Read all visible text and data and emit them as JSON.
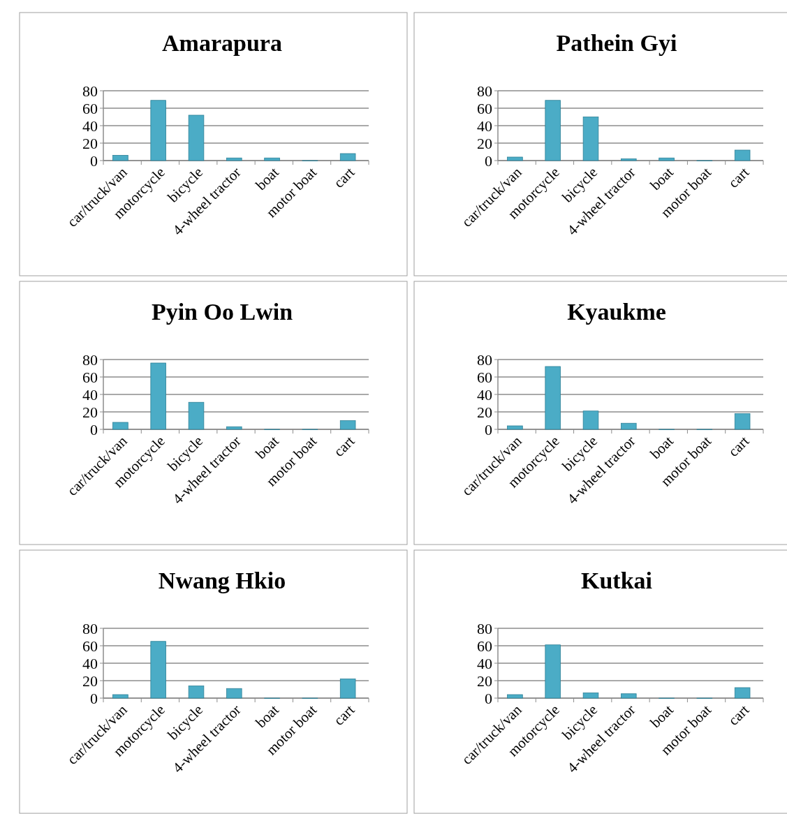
{
  "chart_data": [
    {
      "type": "bar",
      "title": "Amarapura",
      "categories": [
        "car/truck/van",
        "motorcycle",
        "bicycle",
        "4-wheel tractor",
        "boat",
        "motor boat",
        "cart"
      ],
      "values": [
        6,
        69,
        52,
        3,
        3,
        0,
        8
      ],
      "color": "#4bacc6",
      "ylim": [
        0,
        80
      ],
      "yticks": [
        0,
        20,
        40,
        60,
        80
      ],
      "grid": "y"
    },
    {
      "type": "bar",
      "title": "Pathein Gyi",
      "categories": [
        "car/truck/van",
        "motorcycle",
        "bicycle",
        "4-wheel tractor",
        "boat",
        "motor boat",
        "cart"
      ],
      "values": [
        4,
        69,
        50,
        2,
        3,
        0,
        12
      ],
      "color": "#4bacc6",
      "ylim": [
        0,
        80
      ],
      "yticks": [
        0,
        20,
        40,
        60,
        80
      ],
      "grid": "y"
    },
    {
      "type": "bar",
      "title": "Pyin Oo Lwin",
      "categories": [
        "car/truck/van",
        "motorcycle",
        "bicycle",
        "4-wheel tractor",
        "boat",
        "motor boat",
        "cart"
      ],
      "values": [
        8,
        76,
        31,
        3,
        0,
        0,
        10
      ],
      "color": "#4bacc6",
      "ylim": [
        0,
        80
      ],
      "yticks": [
        0,
        20,
        40,
        60,
        80
      ],
      "grid": "y"
    },
    {
      "type": "bar",
      "title": "Kyaukme",
      "categories": [
        "car/truck/van",
        "motorcycle",
        "bicycle",
        "4-wheel tractor",
        "boat",
        "motor boat",
        "cart"
      ],
      "values": [
        4,
        72,
        21,
        7,
        0,
        0,
        18
      ],
      "color": "#4bacc6",
      "ylim": [
        0,
        80
      ],
      "yticks": [
        0,
        20,
        40,
        60,
        80
      ],
      "grid": "y"
    },
    {
      "type": "bar",
      "title": "Nwang Hkio",
      "categories": [
        "car/truck/van",
        "motorcycle",
        "bicycle",
        "4-wheel tractor",
        "boat",
        "motor boat",
        "cart"
      ],
      "values": [
        4,
        65,
        14,
        11,
        0,
        0,
        22
      ],
      "color": "#4bacc6",
      "ylim": [
        0,
        80
      ],
      "yticks": [
        0,
        20,
        40,
        60,
        80
      ],
      "grid": "y"
    },
    {
      "type": "bar",
      "title": "Kutkai",
      "categories": [
        "car/truck/van",
        "motorcycle",
        "bicycle",
        "4-wheel tractor",
        "boat",
        "motor boat",
        "cart"
      ],
      "values": [
        4,
        61,
        6,
        5,
        0,
        0,
        12
      ],
      "color": "#4bacc6",
      "ylim": [
        0,
        80
      ],
      "yticks": [
        0,
        20,
        40,
        60,
        80
      ],
      "grid": "y"
    }
  ]
}
